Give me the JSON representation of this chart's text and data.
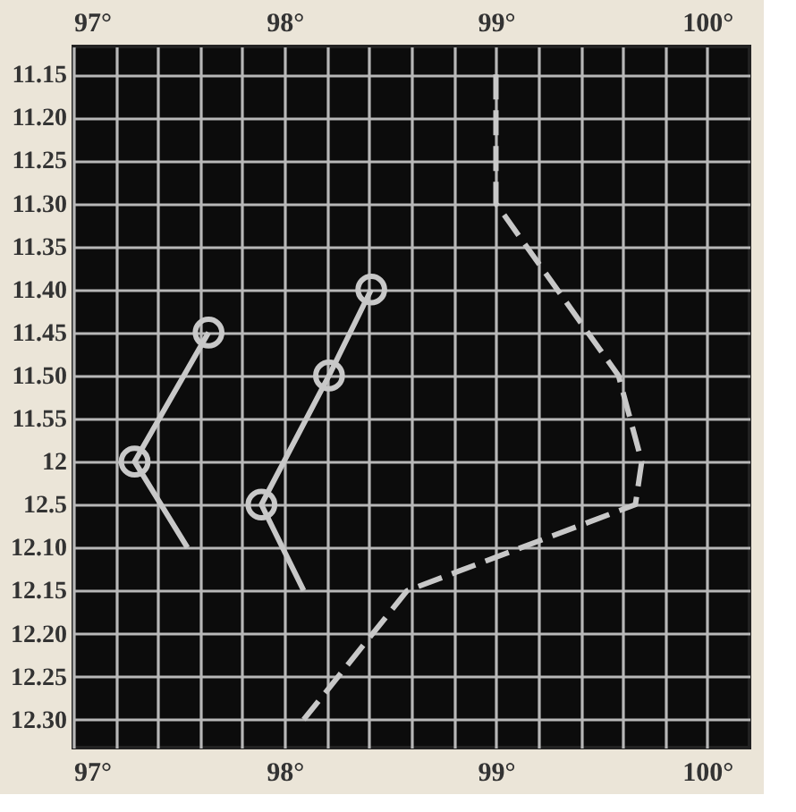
{
  "chart_data": {
    "type": "line",
    "orientation": "horizontal",
    "categories": [
      "11.15",
      "11.20",
      "11.25",
      "11.30",
      "11.35",
      "11.40",
      "11.45",
      "11.50",
      "11.55",
      "12",
      "12.5",
      "12.10",
      "12.15",
      "12.20",
      "12.25",
      "12.30"
    ],
    "xlim": [
      97,
      100.2
    ],
    "xticks": [
      {
        "value": 97,
        "label": "97°"
      },
      {
        "value": 97.2,
        "label": null
      },
      {
        "value": 97.4,
        "label": null
      },
      {
        "value": 97.6,
        "label": null
      },
      {
        "value": 97.8,
        "label": null
      },
      {
        "value": 98,
        "label": "98°"
      },
      {
        "value": 98.2,
        "label": null
      },
      {
        "value": 98.4,
        "label": null
      },
      {
        "value": 98.6,
        "label": null
      },
      {
        "value": 98.8,
        "label": null
      },
      {
        "value": 99,
        "label": "99°"
      },
      {
        "value": 99.2,
        "label": null
      },
      {
        "value": 99.4,
        "label": null
      },
      {
        "value": 99.6,
        "label": null
      },
      {
        "value": 99.8,
        "label": null
      },
      {
        "value": 100,
        "label": "100°"
      }
    ],
    "x2lim": [
      97,
      100.2
    ],
    "x2ticks": [
      {
        "value": 97,
        "label": "97°"
      },
      {
        "value": 98,
        "label": "98°"
      },
      {
        "value": 99,
        "label": "99°"
      },
      {
        "value": 100,
        "label": "100°"
      }
    ],
    "grid": true,
    "series": [
      {
        "color": "#c8c8c8",
        "line_style": "dashed",
        "values": [
          99.0,
          null,
          null,
          99.0,
          null,
          null,
          null,
          99.58,
          null,
          99.69,
          99.66,
          null,
          98.58,
          null,
          null,
          98.09
        ]
      },
      {
        "color": "#c8c8c8",
        "line_style": "solid",
        "values": [
          null,
          null,
          null,
          null,
          null,
          null,
          97.64,
          null,
          null,
          97.29,
          null,
          97.54,
          null,
          null,
          null,
          null
        ]
      },
      {
        "type": "scatter",
        "color": "#c8c8c8",
        "marker": "circle",
        "values": [
          null,
          null,
          null,
          null,
          null,
          null,
          97.64,
          null,
          null,
          97.29,
          null,
          null,
          null,
          null,
          null,
          null
        ]
      },
      {
        "color": "#c8c8c8",
        "line_style": "solid",
        "values": [
          null,
          null,
          null,
          null,
          null,
          98.41,
          null,
          98.21,
          null,
          null,
          97.89,
          null,
          98.09,
          null,
          null,
          null
        ]
      },
      {
        "type": "scatter",
        "color": "#c8c8c8",
        "marker": "circle",
        "values": [
          null,
          null,
          null,
          null,
          null,
          98.41,
          null,
          98.21,
          null,
          null,
          97.89,
          null,
          null,
          null,
          null,
          null
        ]
      }
    ]
  }
}
